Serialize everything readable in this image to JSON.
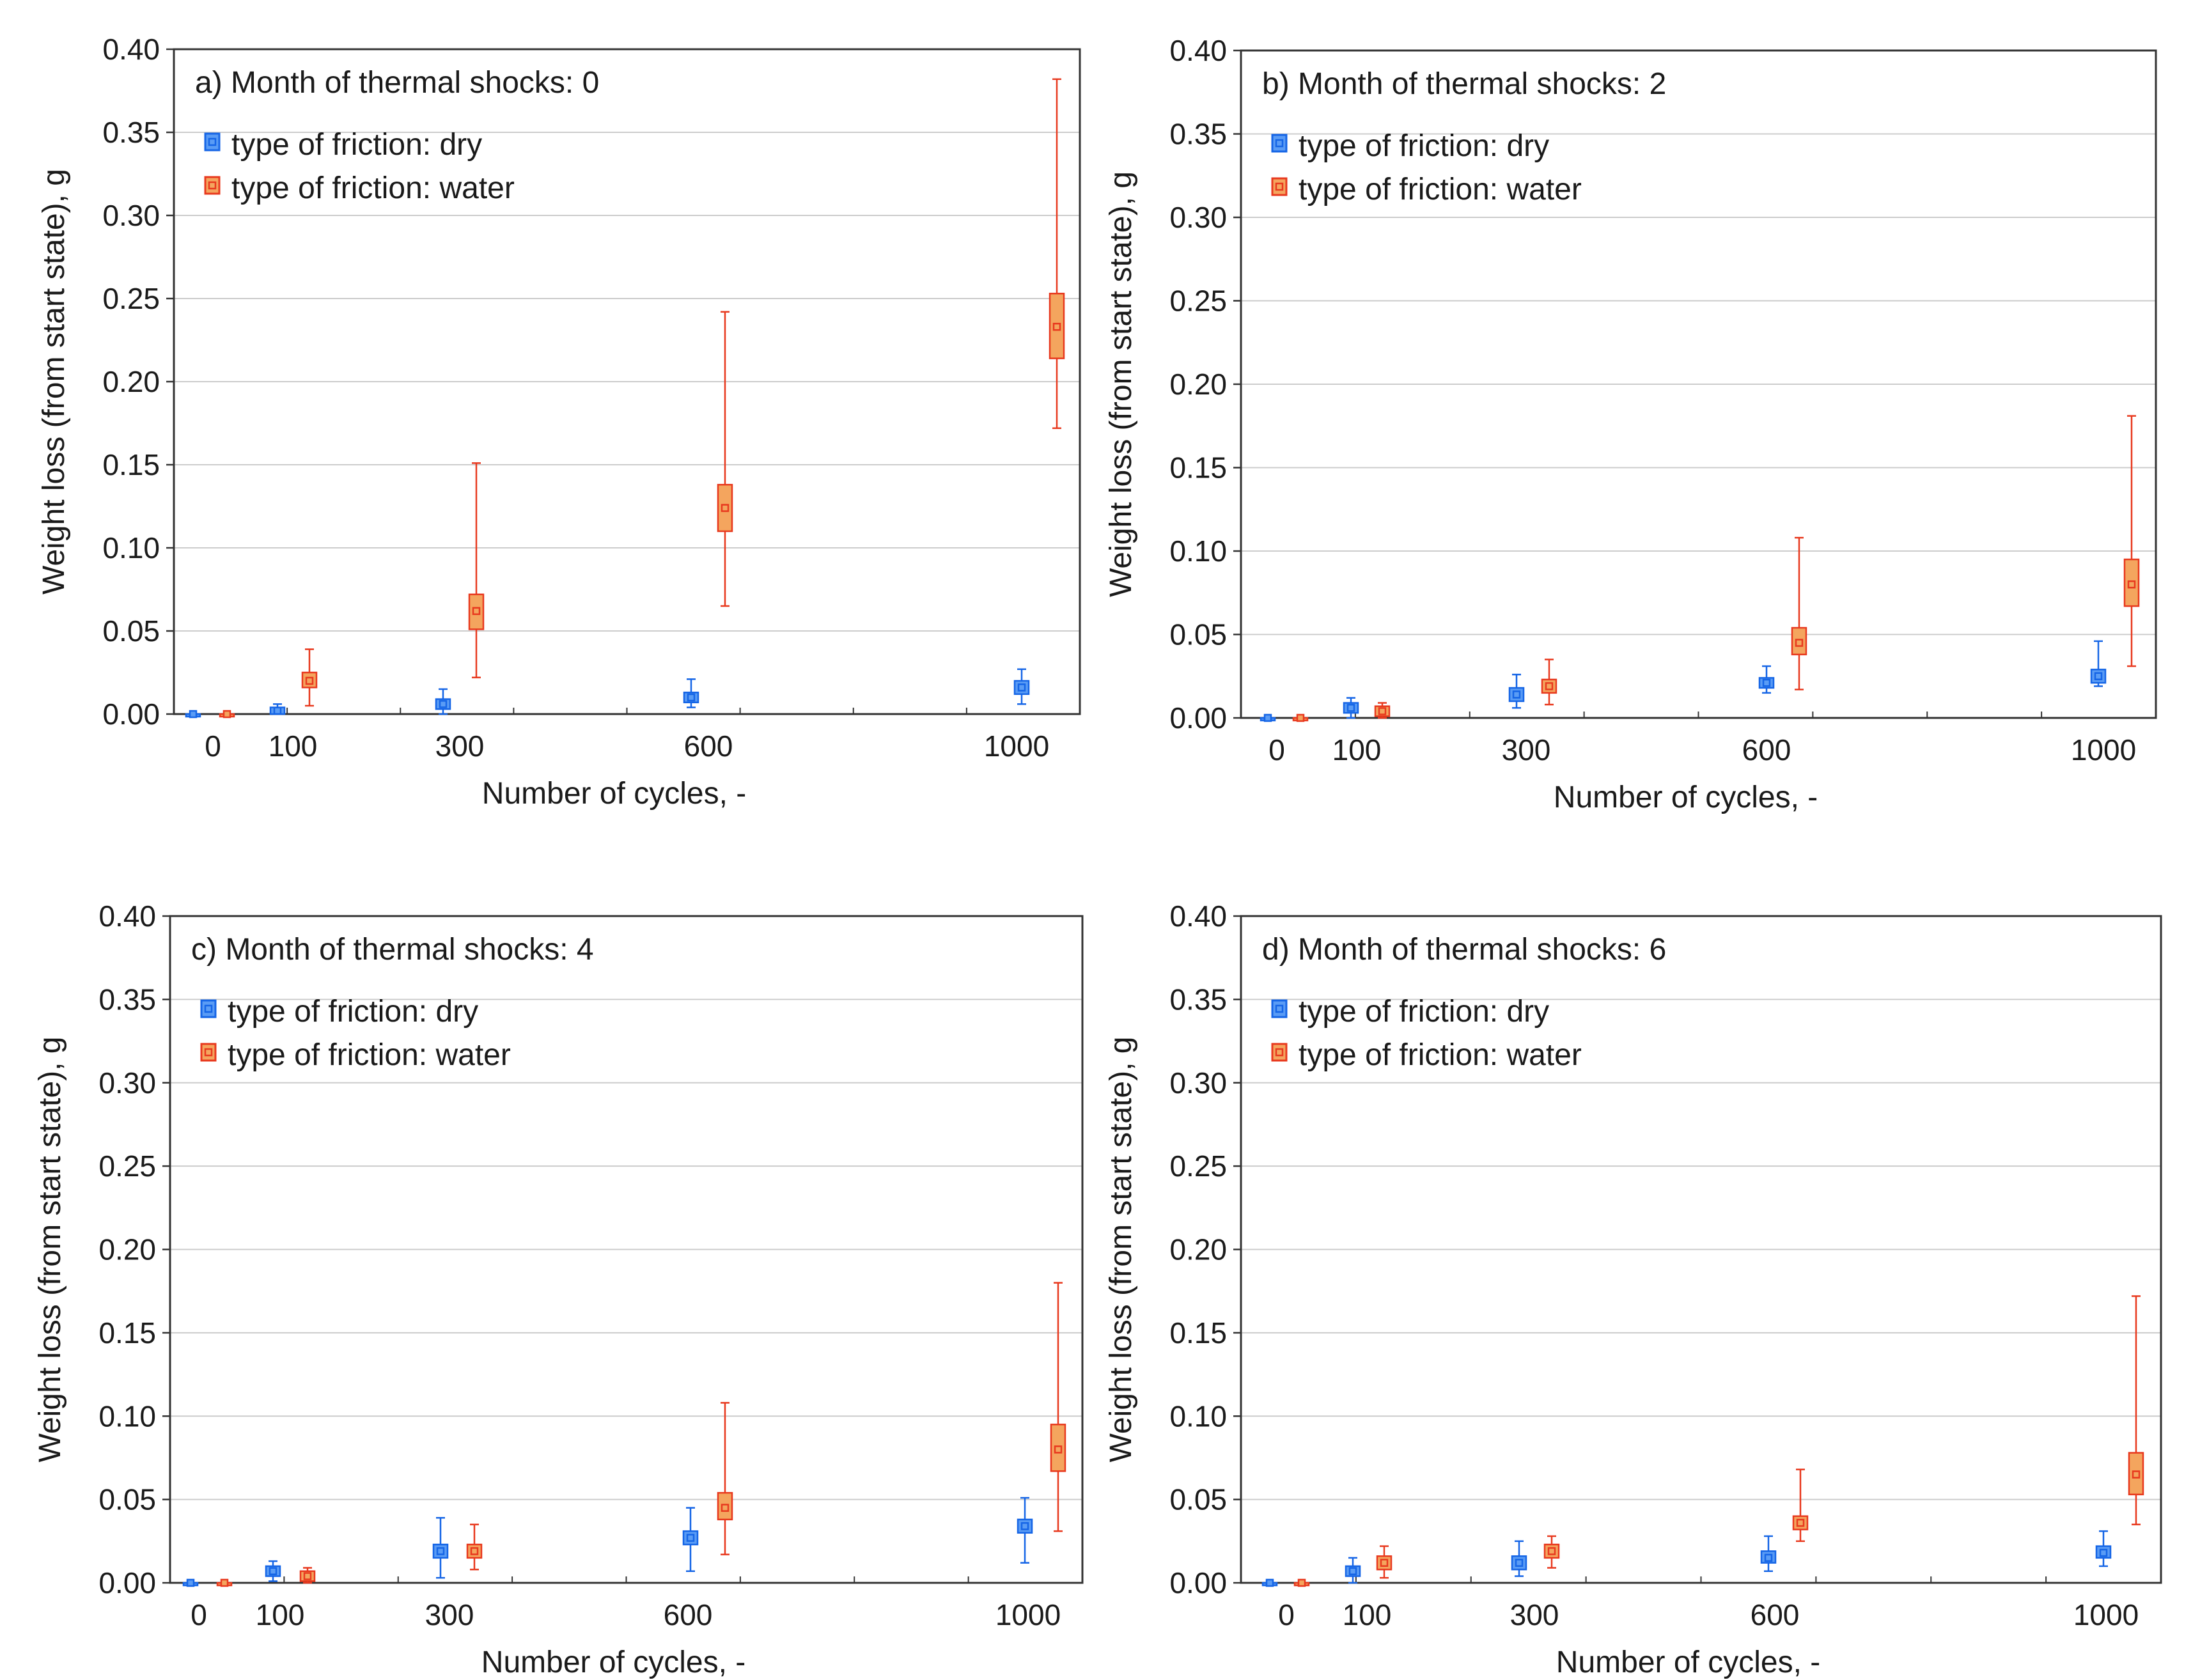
{
  "colors": {
    "dry": "#1565e6",
    "dry_fill": "#5a9cf5",
    "water": "#e8391e",
    "water_fill": "#f4a55e",
    "frame": "#333333",
    "grid": "#cccccc"
  },
  "chart_data": [
    {
      "type": "box",
      "title": "a) Month of thermal shocks: 0",
      "xlabel": "Number of cycles, -",
      "ylabel": "Weight loss (from start state), g",
      "x_ticks": [
        "0",
        "100",
        "300",
        "600",
        "1000"
      ],
      "y_ticks": [
        "0.00",
        "0.05",
        "0.10",
        "0.15",
        "0.20",
        "0.25",
        "0.30",
        "0.35",
        "0.40"
      ],
      "ylim": [
        0,
        0.4
      ],
      "grid": "horizontal",
      "legend_position": "top-left",
      "series": [
        {
          "name": "type of friction: dry",
          "points": [
            {
              "x": 0,
              "mean": 0.0,
              "box_low": 0.0,
              "box_high": 0.0,
              "whisker_low": 0.0,
              "whisker_high": 0.0
            },
            {
              "x": 100,
              "mean": 0.002,
              "box_low": 0.0,
              "box_high": 0.004,
              "whisker_low": 0.0,
              "whisker_high": 0.006
            },
            {
              "x": 300,
              "mean": 0.006,
              "box_low": 0.003,
              "box_high": 0.009,
              "whisker_low": 0.0,
              "whisker_high": 0.015
            },
            {
              "x": 600,
              "mean": 0.01,
              "box_low": 0.007,
              "box_high": 0.013,
              "whisker_low": 0.004,
              "whisker_high": 0.021
            },
            {
              "x": 1000,
              "mean": 0.016,
              "box_low": 0.012,
              "box_high": 0.02,
              "whisker_low": 0.006,
              "whisker_high": 0.027
            }
          ]
        },
        {
          "name": "type of friction: water",
          "points": [
            {
              "x": 0,
              "mean": 0.0,
              "box_low": 0.0,
              "box_high": 0.0,
              "whisker_low": 0.0,
              "whisker_high": 0.0
            },
            {
              "x": 100,
              "mean": 0.02,
              "box_low": 0.016,
              "box_high": 0.025,
              "whisker_low": 0.005,
              "whisker_high": 0.039
            },
            {
              "x": 300,
              "mean": 0.062,
              "box_low": 0.051,
              "box_high": 0.072,
              "whisker_low": 0.022,
              "whisker_high": 0.151
            },
            {
              "x": 600,
              "mean": 0.124,
              "box_low": 0.11,
              "box_high": 0.138,
              "whisker_low": 0.065,
              "whisker_high": 0.242
            },
            {
              "x": 1000,
              "mean": 0.233,
              "box_low": 0.214,
              "box_high": 0.253,
              "whisker_low": 0.172,
              "whisker_high": 0.382
            }
          ]
        }
      ]
    },
    {
      "type": "box",
      "title": "b) Month of thermal shocks: 2",
      "xlabel": "Number of cycles, -",
      "ylabel": "Weight loss (from start state), g",
      "x_ticks": [
        "0",
        "100",
        "300",
        "600",
        "1000"
      ],
      "y_ticks": [
        "0.00",
        "0.05",
        "0.10",
        "0.15",
        "0.20",
        "0.25",
        "0.30",
        "0.35",
        "0.40"
      ],
      "ylim": [
        0,
        0.4
      ],
      "grid": "horizontal",
      "legend_position": "top-left",
      "series": [
        {
          "name": "type of friction: dry",
          "points": [
            {
              "x": 0,
              "mean": 0.0,
              "box_low": 0.0,
              "box_high": 0.0,
              "whisker_low": 0.0,
              "whisker_high": 0.0
            },
            {
              "x": 100,
              "mean": 0.006,
              "box_low": 0.003,
              "box_high": 0.009,
              "whisker_low": 0.0,
              "whisker_high": 0.012
            },
            {
              "x": 300,
              "mean": 0.014,
              "box_low": 0.01,
              "box_high": 0.018,
              "whisker_low": 0.006,
              "whisker_high": 0.026
            },
            {
              "x": 600,
              "mean": 0.021,
              "box_low": 0.018,
              "box_high": 0.024,
              "whisker_low": 0.015,
              "whisker_high": 0.031
            },
            {
              "x": 1000,
              "mean": 0.025,
              "box_low": 0.021,
              "box_high": 0.029,
              "whisker_low": 0.019,
              "whisker_high": 0.046
            }
          ]
        },
        {
          "name": "type of friction: water",
          "points": [
            {
              "x": 0,
              "mean": 0.0,
              "box_low": 0.0,
              "box_high": 0.0,
              "whisker_low": 0.0,
              "whisker_high": 0.0
            },
            {
              "x": 100,
              "mean": 0.004,
              "box_low": 0.001,
              "box_high": 0.007,
              "whisker_low": 0.0,
              "whisker_high": 0.009
            },
            {
              "x": 300,
              "mean": 0.019,
              "box_low": 0.015,
              "box_high": 0.023,
              "whisker_low": 0.008,
              "whisker_high": 0.035
            },
            {
              "x": 600,
              "mean": 0.045,
              "box_low": 0.038,
              "box_high": 0.054,
              "whisker_low": 0.017,
              "whisker_high": 0.108
            },
            {
              "x": 1000,
              "mean": 0.08,
              "box_low": 0.067,
              "box_high": 0.095,
              "whisker_low": 0.031,
              "whisker_high": 0.181
            }
          ]
        }
      ]
    },
    {
      "type": "box",
      "title": "c) Month of thermal shocks: 4",
      "xlabel": "Number of cycles, -",
      "ylabel": "Weight loss (from start state), g",
      "x_ticks": [
        "0",
        "100",
        "300",
        "600",
        "1000"
      ],
      "y_ticks": [
        "0.00",
        "0.05",
        "0.10",
        "0.15",
        "0.20",
        "0.25",
        "0.30",
        "0.35",
        "0.40"
      ],
      "ylim": [
        0,
        0.4
      ],
      "grid": "horizontal",
      "legend_position": "top-left",
      "series": [
        {
          "name": "type of friction: dry",
          "points": [
            {
              "x": 0,
              "mean": 0.0,
              "box_low": 0.0,
              "box_high": 0.0,
              "whisker_low": 0.0,
              "whisker_high": 0.0
            },
            {
              "x": 100,
              "mean": 0.007,
              "box_low": 0.004,
              "box_high": 0.01,
              "whisker_low": 0.001,
              "whisker_high": 0.013
            },
            {
              "x": 300,
              "mean": 0.019,
              "box_low": 0.015,
              "box_high": 0.023,
              "whisker_low": 0.003,
              "whisker_high": 0.039
            },
            {
              "x": 600,
              "mean": 0.027,
              "box_low": 0.023,
              "box_high": 0.031,
              "whisker_low": 0.007,
              "whisker_high": 0.045
            },
            {
              "x": 1000,
              "mean": 0.034,
              "box_low": 0.03,
              "box_high": 0.038,
              "whisker_low": 0.012,
              "whisker_high": 0.051
            }
          ]
        },
        {
          "name": "type of friction: water",
          "points": [
            {
              "x": 0,
              "mean": 0.0,
              "box_low": 0.0,
              "box_high": 0.0,
              "whisker_low": 0.0,
              "whisker_high": 0.0
            },
            {
              "x": 100,
              "mean": 0.004,
              "box_low": 0.001,
              "box_high": 0.007,
              "whisker_low": 0.0,
              "whisker_high": 0.009
            },
            {
              "x": 300,
              "mean": 0.019,
              "box_low": 0.015,
              "box_high": 0.023,
              "whisker_low": 0.008,
              "whisker_high": 0.035
            },
            {
              "x": 600,
              "mean": 0.045,
              "box_low": 0.038,
              "box_high": 0.054,
              "whisker_low": 0.017,
              "whisker_high": 0.108
            },
            {
              "x": 1000,
              "mean": 0.08,
              "box_low": 0.067,
              "box_high": 0.095,
              "whisker_low": 0.031,
              "whisker_high": 0.18
            }
          ]
        }
      ]
    },
    {
      "type": "box",
      "title": "d) Month of thermal shocks: 6",
      "xlabel": "Number of cycles, -",
      "ylabel": "Weight loss (from start state), g",
      "x_ticks": [
        "0",
        "100",
        "300",
        "600",
        "1000"
      ],
      "y_ticks": [
        "0.00",
        "0.05",
        "0.10",
        "0.15",
        "0.20",
        "0.25",
        "0.30",
        "0.35",
        "0.40"
      ],
      "ylim": [
        0,
        0.4
      ],
      "grid": "horizontal",
      "legend_position": "top-left",
      "series": [
        {
          "name": "type of friction: dry",
          "points": [
            {
              "x": 0,
              "mean": 0.0,
              "box_low": 0.0,
              "box_high": 0.0,
              "whisker_low": 0.0,
              "whisker_high": 0.0
            },
            {
              "x": 100,
              "mean": 0.007,
              "box_low": 0.004,
              "box_high": 0.01,
              "whisker_low": 0.0,
              "whisker_high": 0.015
            },
            {
              "x": 300,
              "mean": 0.012,
              "box_low": 0.008,
              "box_high": 0.016,
              "whisker_low": 0.004,
              "whisker_high": 0.025
            },
            {
              "x": 600,
              "mean": 0.015,
              "box_low": 0.012,
              "box_high": 0.019,
              "whisker_low": 0.007,
              "whisker_high": 0.028
            },
            {
              "x": 1000,
              "mean": 0.018,
              "box_low": 0.015,
              "box_high": 0.022,
              "whisker_low": 0.01,
              "whisker_high": 0.031
            }
          ]
        },
        {
          "name": "type of friction: water",
          "points": [
            {
              "x": 0,
              "mean": 0.0,
              "box_low": 0.0,
              "box_high": 0.0,
              "whisker_low": 0.0,
              "whisker_high": 0.0
            },
            {
              "x": 100,
              "mean": 0.012,
              "box_low": 0.008,
              "box_high": 0.016,
              "whisker_low": 0.003,
              "whisker_high": 0.022
            },
            {
              "x": 300,
              "mean": 0.019,
              "box_low": 0.015,
              "box_high": 0.023,
              "whisker_low": 0.009,
              "whisker_high": 0.028
            },
            {
              "x": 600,
              "mean": 0.036,
              "box_low": 0.032,
              "box_high": 0.04,
              "whisker_low": 0.025,
              "whisker_high": 0.068
            },
            {
              "x": 1000,
              "mean": 0.065,
              "box_low": 0.053,
              "box_high": 0.078,
              "whisker_low": 0.035,
              "whisker_high": 0.172
            }
          ]
        }
      ]
    }
  ]
}
